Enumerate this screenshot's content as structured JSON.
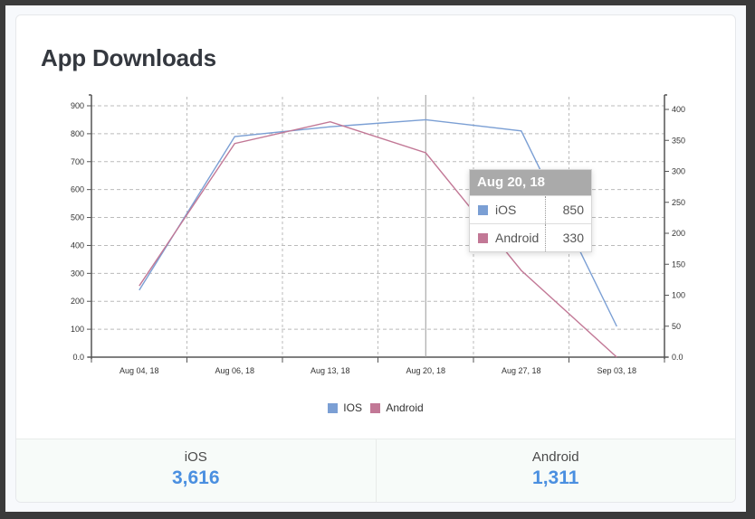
{
  "card": {
    "title": "App Downloads"
  },
  "colors": {
    "ios": "#7b9fd4",
    "android": "#c27896",
    "stat_value": "#4a8fe0",
    "tooltip_header": "#aaaaaa"
  },
  "tooltip": {
    "date": "Aug 20, 18",
    "rows": [
      {
        "name": "iOS",
        "value": "850"
      },
      {
        "name": "Android",
        "value": "330"
      }
    ]
  },
  "legend": {
    "items": [
      {
        "label": "IOS"
      },
      {
        "label": "Android"
      }
    ]
  },
  "stats": [
    {
      "label": "iOS",
      "value": "3,616"
    },
    {
      "label": "Android",
      "value": "1,311"
    }
  ],
  "chart_data": {
    "type": "line",
    "title": "App Downloads",
    "categories": [
      "Aug 04, 18",
      "Aug 06, 18",
      "Aug 13, 18",
      "Aug 20, 18",
      "Aug 27, 18",
      "Sep 03, 18"
    ],
    "series": [
      {
        "name": "IOS",
        "axis": "left",
        "values": [
          240,
          790,
          825,
          850,
          810,
          110
        ]
      },
      {
        "name": "Android",
        "axis": "right",
        "values": [
          115,
          345,
          380,
          330,
          140,
          0
        ]
      }
    ],
    "left_axis": {
      "ticks": [
        "0.0",
        "100",
        "200",
        "300",
        "400",
        "500",
        "600",
        "700",
        "800",
        "900"
      ],
      "ylim": [
        0,
        900
      ]
    },
    "right_axis": {
      "ticks": [
        "0.0",
        "50",
        "100",
        "150",
        "200",
        "250",
        "300",
        "350",
        "400"
      ],
      "ylim": [
        0,
        400
      ]
    },
    "grid": true,
    "legend_position": "bottom",
    "hover_category": "Aug 20, 18"
  }
}
